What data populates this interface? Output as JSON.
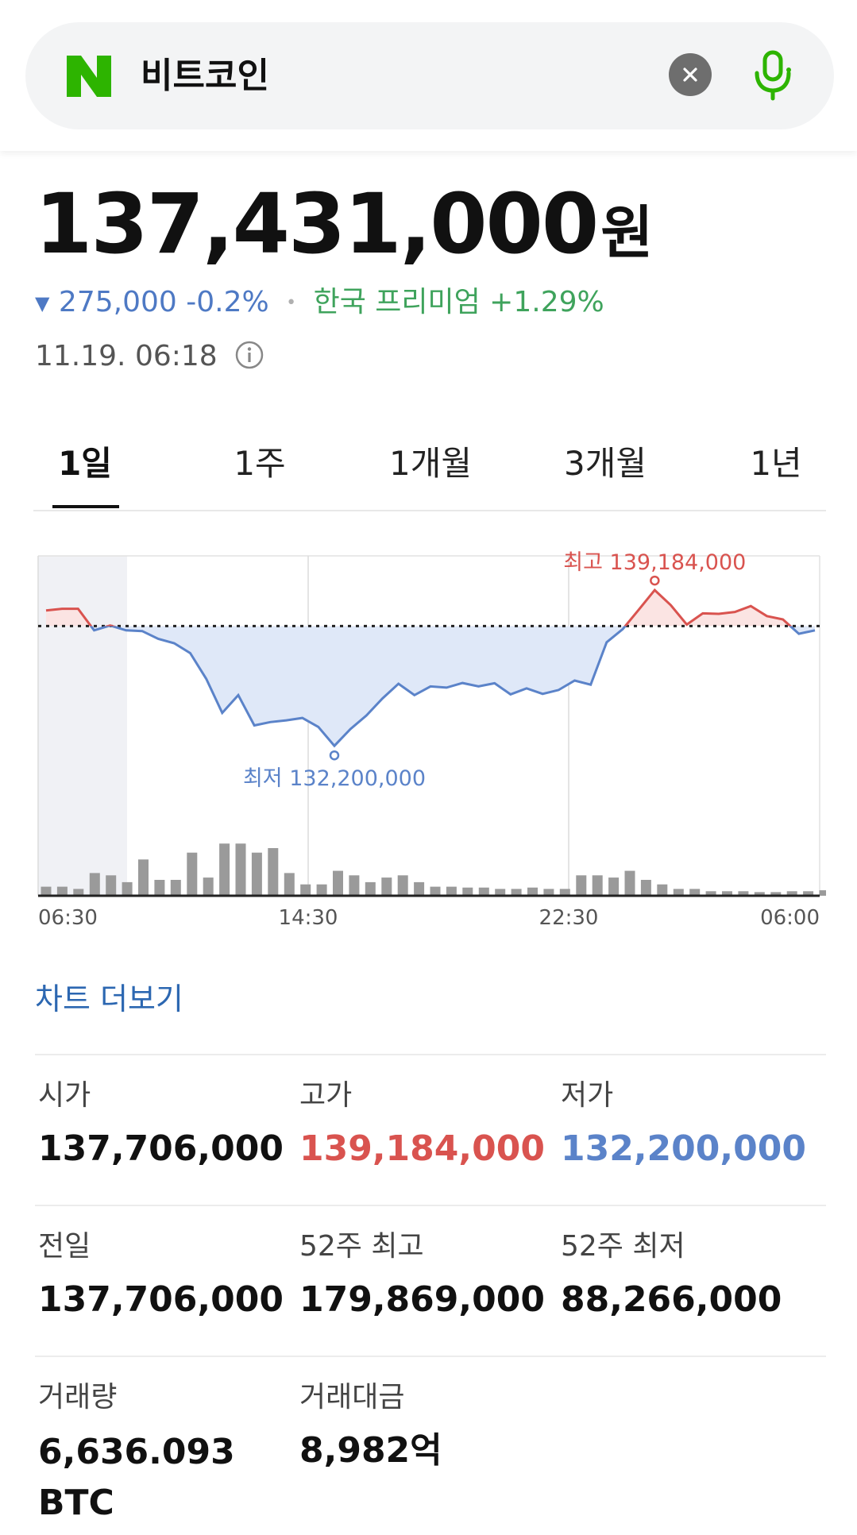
{
  "search": {
    "query": "비트코인",
    "brand_color": "#2db400"
  },
  "quote": {
    "price": "137,431,000",
    "unit": "원",
    "change_arrow": "▼",
    "change": "275,000 -0.2%",
    "separator": "•",
    "premium": "한국 프리미엄 +1.29%",
    "timestamp": "11.19. 06:18",
    "colors": {
      "down": "#4e79c4",
      "premium": "#3fa35c"
    }
  },
  "tabs": [
    {
      "label": "1일",
      "active": true
    },
    {
      "label": "1주",
      "active": false
    },
    {
      "label": "1개월",
      "active": false
    },
    {
      "label": "3개월",
      "active": false
    },
    {
      "label": "1년",
      "active": false
    }
  ],
  "chart_data": {
    "type": "line",
    "title": "",
    "xlabel": "",
    "ylabel": "",
    "x_tick_labels": [
      "06:30",
      "14:30",
      "22:30",
      "06:00"
    ],
    "reference_line": 137706000,
    "high_label": "최고 139,184,000",
    "low_label": "최저 132,200,000",
    "high": 139184000,
    "low": 132200000,
    "ylim": [
      131500000,
      140600000
    ],
    "grid": true,
    "series": [
      {
        "values": [
          138350000,
          138420000,
          138420000,
          137530000,
          137730000,
          137530000,
          137500000,
          137180000,
          137000000,
          136590000,
          135530000,
          134130000,
          134860000,
          133610000,
          133750000,
          133820000,
          133920000,
          133550000,
          132770000,
          133460000,
          134020000,
          134720000,
          135330000,
          134860000,
          135220000,
          135170000,
          135360000,
          135220000,
          135350000,
          134890000,
          135140000,
          134910000,
          135070000,
          135460000,
          135290000,
          137040000,
          137580000,
          138380000,
          139190000,
          138570000,
          137770000,
          138230000,
          138210000,
          138290000,
          138530000,
          138120000,
          137980000,
          137390000,
          137530000
        ]
      }
    ],
    "volume": [
      2,
      2,
      1.5,
      5,
      4.5,
      3,
      8,
      3.5,
      3.5,
      9.5,
      4,
      11.5,
      11.5,
      9.5,
      10.5,
      5,
      2.5,
      2.5,
      5.5,
      4.5,
      3,
      4,
      4.5,
      3,
      2,
      2,
      1.8,
      1.8,
      1.5,
      1.5,
      1.8,
      1.5,
      1.5,
      4.5,
      4.5,
      4,
      5.5,
      3.5,
      2.5,
      1.5,
      1.5,
      1,
      1,
      1,
      0.8,
      0.8,
      1,
      1,
      1.2
    ],
    "colors": {
      "below": "#5b83c9",
      "above": "#d9534f",
      "volume": "#9a9a9a"
    }
  },
  "more_link": "차트 더보기",
  "stats": {
    "open": {
      "label": "시가",
      "value": "137,706,000"
    },
    "high": {
      "label": "고가",
      "value": "139,184,000"
    },
    "low": {
      "label": "저가",
      "value": "132,200,000"
    },
    "prev": {
      "label": "전일",
      "value": "137,706,000"
    },
    "w52_high": {
      "label": "52주 최고",
      "value": "179,869,000"
    },
    "w52_low": {
      "label": "52주 최저",
      "value": "88,266,000"
    },
    "volume": {
      "label": "거래량",
      "value": "6,636.093\nBTC"
    },
    "amount": {
      "label": "거래대금",
      "value": "8,982억"
    }
  }
}
